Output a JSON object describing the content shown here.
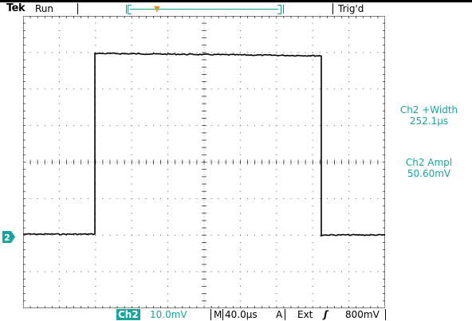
{
  "header": {
    "brand": "Tek",
    "run_status": "Run",
    "trigger_status": "Trig'd"
  },
  "markers": {
    "trigger_marker_label": "T",
    "channel_marker_label": "2"
  },
  "measurements": [
    {
      "label": "Ch2 +Width",
      "value": "252.1µs"
    },
    {
      "label": "Ch2 Ampl",
      "value": "50.60mV"
    }
  ],
  "status_bar": {
    "channel": "Ch2",
    "volts_per_div": "10.0mV",
    "timebase_prefix": "M",
    "timebase": "40.0µs",
    "trigger_source_prefix": "A",
    "trigger_source": "Ext",
    "trigger_slope_symbol": "ʃ",
    "trigger_level": "800mV"
  },
  "colors": {
    "channel2": "#1aa39b",
    "trigger_marker": "#f28e1c",
    "trace": "#000000",
    "grid": "#000000",
    "background": "#ffffff"
  },
  "waveform": {
    "type": "pulse",
    "pulse_width": "252.1µs",
    "amplitude": "50.60mV",
    "volts_per_div": "10.0mV",
    "time_per_div": "40.0µs",
    "divisions": {
      "horizontal": 10,
      "vertical": 8
    }
  }
}
